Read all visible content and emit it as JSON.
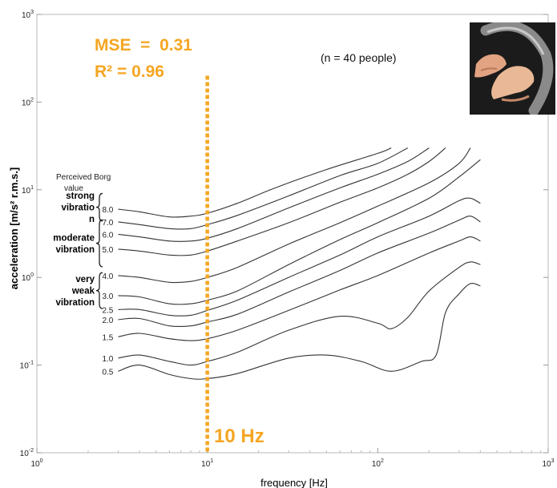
{
  "chart_data": {
    "type": "line",
    "xscale": "log",
    "yscale": "log",
    "xlim": [
      1,
      1000
    ],
    "ylim": [
      0.01,
      1000
    ],
    "xlabel": "frequency [Hz]",
    "ylabel": "acceleration [m/s² r.m.s.]",
    "legend_title": [
      "Perceived Borg",
      "value"
    ],
    "annotation_population": "(n = 40 people)",
    "stat_mse": "MSE  =  0.31",
    "stat_r2": "R² = 0.96",
    "marker_line": {
      "x": 10,
      "label": "10 Hz",
      "color": "#f5a623"
    },
    "x_ticks": [
      {
        "value": 1,
        "base": "10",
        "exp": "0"
      },
      {
        "value": 10,
        "base": "10",
        "exp": "1"
      },
      {
        "value": 100,
        "base": "10",
        "exp": "2"
      },
      {
        "value": 1000,
        "base": "10",
        "exp": "3"
      }
    ],
    "y_ticks": [
      {
        "value": 0.01,
        "base": "10",
        "exp": "-2"
      },
      {
        "value": 0.1,
        "base": "10",
        "exp": "-1"
      },
      {
        "value": 1,
        "base": "10",
        "exp": "0"
      },
      {
        "value": 10,
        "base": "10",
        "exp": "1"
      },
      {
        "value": 100,
        "base": "10",
        "exp": "2"
      },
      {
        "value": 1000,
        "base": "10",
        "exp": "3"
      }
    ],
    "groups": [
      {
        "lines": [
          "strong",
          "vibratio",
          "n"
        ],
        "range": [
          5.0,
          8.0
        ]
      },
      {
        "lines": [
          "moderate",
          "vibration"
        ],
        "range": [
          1.5,
          4.0
        ]
      },
      {
        "lines": [
          "very",
          "weak",
          "vibration"
        ],
        "range": [
          0.5,
          1.0
        ]
      }
    ],
    "series": [
      {
        "name": "8.0",
        "points": [
          [
            3,
            6.0
          ],
          [
            4,
            5.6
          ],
          [
            6,
            4.9
          ],
          [
            8,
            5.0
          ],
          [
            10,
            5.4
          ],
          [
            15,
            7.0
          ],
          [
            25,
            10.5
          ],
          [
            50,
            17
          ],
          [
            100,
            26
          ],
          [
            120,
            30
          ]
        ]
      },
      {
        "name": "7.0",
        "points": [
          [
            3,
            4.3
          ],
          [
            4,
            4.0
          ],
          [
            6,
            3.6
          ],
          [
            8,
            3.6
          ],
          [
            10,
            4.0
          ],
          [
            15,
            5.1
          ],
          [
            30,
            8.5
          ],
          [
            60,
            14.5
          ],
          [
            100,
            20
          ],
          [
            150,
            30
          ]
        ]
      },
      {
        "name": "6.0",
        "points": [
          [
            3,
            3.1
          ],
          [
            4,
            2.9
          ],
          [
            6,
            2.6
          ],
          [
            8,
            2.6
          ],
          [
            10,
            2.8
          ],
          [
            15,
            3.6
          ],
          [
            30,
            6.2
          ],
          [
            60,
            10.5
          ],
          [
            100,
            15
          ],
          [
            150,
            21
          ],
          [
            200,
            30
          ]
        ]
      },
      {
        "name": "5.0",
        "points": [
          [
            3,
            2.1
          ],
          [
            4,
            2.0
          ],
          [
            6,
            1.8
          ],
          [
            8,
            1.8
          ],
          [
            10,
            2.0
          ],
          [
            15,
            2.6
          ],
          [
            30,
            4.2
          ],
          [
            60,
            7.2
          ],
          [
            100,
            10.5
          ],
          [
            150,
            15
          ],
          [
            200,
            21
          ],
          [
            250,
            30
          ]
        ]
      },
      {
        "name": "4.0",
        "points": [
          [
            3,
            1.05
          ],
          [
            4,
            1.0
          ],
          [
            6,
            0.88
          ],
          [
            8,
            0.9
          ],
          [
            10,
            1.0
          ],
          [
            15,
            1.3
          ],
          [
            30,
            2.4
          ],
          [
            60,
            4.2
          ],
          [
            100,
            6.5
          ],
          [
            200,
            12
          ],
          [
            300,
            20
          ],
          [
            350,
            30
          ]
        ]
      },
      {
        "name": "3.0",
        "points": [
          [
            3,
            0.62
          ],
          [
            4,
            0.6
          ],
          [
            6,
            0.5
          ],
          [
            8,
            0.5
          ],
          [
            10,
            0.55
          ],
          [
            15,
            0.7
          ],
          [
            30,
            1.4
          ],
          [
            60,
            2.7
          ],
          [
            100,
            4.2
          ],
          [
            200,
            8.0
          ],
          [
            300,
            14
          ],
          [
            400,
            22
          ]
        ]
      },
      {
        "name": "2.5",
        "points": [
          [
            3,
            0.43
          ],
          [
            4,
            0.43
          ],
          [
            6,
            0.37
          ],
          [
            8,
            0.37
          ],
          [
            10,
            0.42
          ],
          [
            15,
            0.55
          ],
          [
            30,
            1.0
          ],
          [
            60,
            1.8
          ],
          [
            100,
            2.9
          ],
          [
            200,
            5.0
          ],
          [
            300,
            7.5
          ],
          [
            350,
            8.0
          ],
          [
            400,
            7.0
          ]
        ]
      },
      {
        "name": "2.0",
        "points": [
          [
            3,
            0.33
          ],
          [
            4,
            0.34
          ],
          [
            6,
            0.28
          ],
          [
            8,
            0.28
          ],
          [
            10,
            0.31
          ],
          [
            15,
            0.38
          ],
          [
            30,
            0.68
          ],
          [
            60,
            1.2
          ],
          [
            100,
            1.9
          ],
          [
            200,
            3.2
          ],
          [
            300,
            4.5
          ],
          [
            350,
            5.0
          ],
          [
            400,
            4.3
          ]
        ]
      },
      {
        "name": "1.5",
        "points": [
          [
            3,
            0.21
          ],
          [
            4,
            0.23
          ],
          [
            6,
            0.2
          ],
          [
            8,
            0.19
          ],
          [
            10,
            0.2
          ],
          [
            15,
            0.25
          ],
          [
            30,
            0.42
          ],
          [
            60,
            0.72
          ],
          [
            100,
            1.05
          ],
          [
            200,
            1.9
          ],
          [
            300,
            2.6
          ],
          [
            350,
            2.9
          ],
          [
            400,
            2.6
          ]
        ]
      },
      {
        "name": "1.0",
        "points": [
          [
            3,
            0.12
          ],
          [
            4,
            0.13
          ],
          [
            6,
            0.11
          ],
          [
            8,
            0.1
          ],
          [
            10,
            0.11
          ],
          [
            15,
            0.14
          ],
          [
            30,
            0.25
          ],
          [
            60,
            0.36
          ],
          [
            100,
            0.3
          ],
          [
            120,
            0.26
          ],
          [
            150,
            0.35
          ],
          [
            200,
            0.7
          ],
          [
            300,
            1.3
          ],
          [
            350,
            1.5
          ],
          [
            400,
            1.4
          ]
        ]
      },
      {
        "name": "0.5",
        "points": [
          [
            3,
            0.085
          ],
          [
            4,
            0.1
          ],
          [
            6,
            0.078
          ],
          [
            8,
            0.07
          ],
          [
            10,
            0.07
          ],
          [
            15,
            0.08
          ],
          [
            30,
            0.12
          ],
          [
            50,
            0.13
          ],
          [
            80,
            0.11
          ],
          [
            120,
            0.085
          ],
          [
            180,
            0.11
          ],
          [
            220,
            0.13
          ],
          [
            250,
            0.4
          ],
          [
            300,
            0.65
          ],
          [
            350,
            0.85
          ],
          [
            400,
            0.8
          ]
        ]
      }
    ],
    "line_color": "#333333"
  },
  "photo": {
    "icon": "hands-on-steering-wheel-photo"
  }
}
